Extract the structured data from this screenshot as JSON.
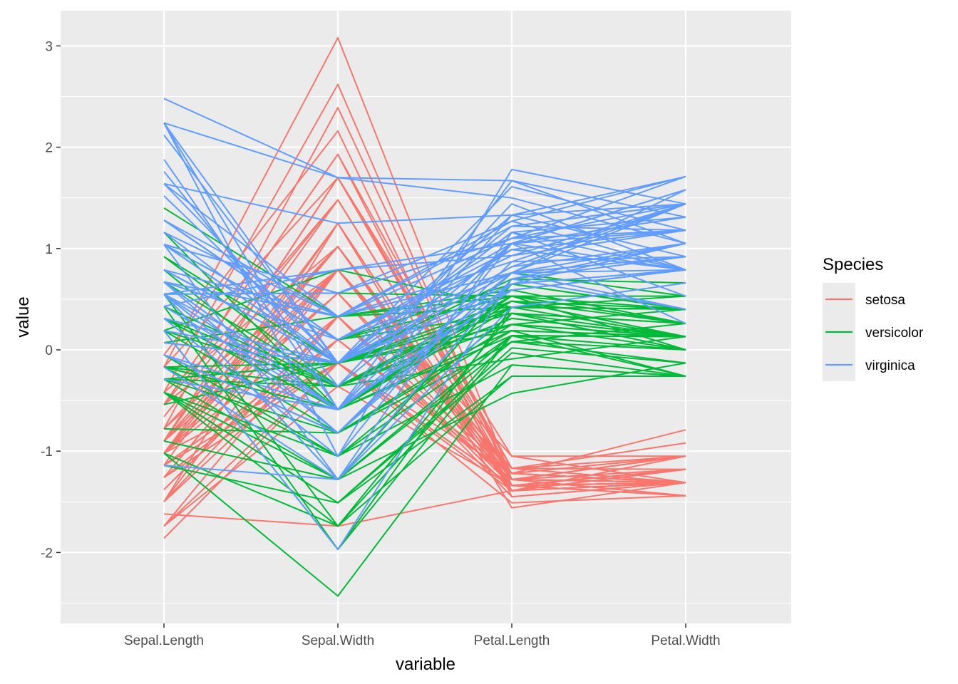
{
  "chart_data": {
    "type": "line",
    "xlabel": "variable",
    "ylabel": "value",
    "categories": [
      "Sepal.Length",
      "Sepal.Width",
      "Petal.Length",
      "Petal.Width"
    ],
    "y_ticks": [
      "-2",
      "-1",
      "0",
      "1",
      "2",
      "3"
    ],
    "ylim": [
      -2.6,
      3.3
    ],
    "grid": true,
    "legend": {
      "title": "Species",
      "position": "right"
    },
    "panel_color": "#ebebeb",
    "series": [
      {
        "name": "setosa",
        "color": "#f8766d",
        "lines": [
          [
            -0.9,
            1.02,
            -1.34,
            -1.31
          ],
          [
            -1.14,
            -0.13,
            -1.34,
            -1.31
          ],
          [
            -1.38,
            0.33,
            -1.39,
            -1.31
          ],
          [
            -1.5,
            0.1,
            -1.28,
            -1.31
          ],
          [
            -1.02,
            1.25,
            -1.34,
            -1.31
          ],
          [
            -0.54,
            1.93,
            -1.17,
            -1.05
          ],
          [
            -1.5,
            0.79,
            -1.34,
            -1.18
          ],
          [
            -1.02,
            0.79,
            -1.28,
            -1.31
          ],
          [
            -1.74,
            -0.36,
            -1.34,
            -1.31
          ],
          [
            -1.14,
            0.1,
            -1.28,
            -1.44
          ],
          [
            -0.54,
            1.48,
            -1.28,
            -1.31
          ],
          [
            -1.26,
            0.79,
            -1.22,
            -1.31
          ],
          [
            -1.26,
            -0.13,
            -1.34,
            -1.44
          ],
          [
            -1.86,
            -0.13,
            -1.51,
            -1.44
          ],
          [
            -0.05,
            2.16,
            -1.45,
            -1.31
          ],
          [
            -0.17,
            3.08,
            -1.28,
            -1.05
          ],
          [
            -0.54,
            1.93,
            -1.39,
            -1.05
          ],
          [
            -0.9,
            1.02,
            -1.34,
            -1.18
          ],
          [
            -0.17,
            1.7,
            -1.17,
            -1.18
          ],
          [
            -0.9,
            1.7,
            -1.28,
            -1.18
          ],
          [
            -0.54,
            0.79,
            -1.17,
            -1.31
          ],
          [
            -0.9,
            1.48,
            -1.28,
            -1.05
          ],
          [
            -1.5,
            1.25,
            -1.56,
            -1.31
          ],
          [
            -0.9,
            0.56,
            -1.17,
            -0.92
          ],
          [
            -1.26,
            0.79,
            -1.05,
            -1.31
          ],
          [
            -1.02,
            -0.13,
            -1.22,
            -1.31
          ],
          [
            -1.02,
            0.79,
            -1.22,
            -1.05
          ],
          [
            -0.78,
            1.02,
            -1.28,
            -1.31
          ],
          [
            -0.78,
            0.79,
            -1.34,
            -1.31
          ],
          [
            -1.38,
            0.33,
            -1.22,
            -1.31
          ],
          [
            -1.26,
            0.1,
            -1.22,
            -1.31
          ],
          [
            -0.54,
            0.79,
            -1.28,
            -1.05
          ],
          [
            -0.78,
            2.39,
            -1.28,
            -1.44
          ],
          [
            -0.42,
            2.62,
            -1.34,
            -1.31
          ],
          [
            -1.14,
            0.1,
            -1.28,
            -1.31
          ],
          [
            -1.02,
            0.33,
            -1.45,
            -1.31
          ],
          [
            -0.42,
            1.02,
            -1.39,
            -1.31
          ],
          [
            -1.14,
            1.25,
            -1.34,
            -1.44
          ],
          [
            -1.74,
            -0.13,
            -1.39,
            -1.31
          ],
          [
            -0.9,
            0.79,
            -1.28,
            -1.31
          ],
          [
            -1.02,
            1.02,
            -1.39,
            -1.18
          ],
          [
            -1.62,
            -1.74,
            -1.39,
            -1.18
          ],
          [
            -1.74,
            0.33,
            -1.39,
            -1.31
          ],
          [
            -1.02,
            1.02,
            -1.22,
            -0.79
          ],
          [
            -0.9,
            1.7,
            -1.05,
            -1.05
          ],
          [
            -1.26,
            -0.13,
            -1.34,
            -1.18
          ],
          [
            -0.9,
            1.7,
            -1.22,
            -1.31
          ],
          [
            -1.5,
            0.33,
            -1.34,
            -1.31
          ],
          [
            -0.66,
            1.48,
            -1.28,
            -1.31
          ],
          [
            -1.02,
            0.56,
            -1.34,
            -1.31
          ]
        ]
      },
      {
        "name": "versicolor",
        "color": "#00ba38",
        "lines": [
          [
            1.4,
            0.33,
            0.53,
            0.26
          ],
          [
            0.67,
            0.33,
            0.42,
            0.4
          ],
          [
            1.28,
            0.1,
            0.65,
            0.4
          ],
          [
            -0.42,
            -1.74,
            0.14,
            0.13
          ],
          [
            0.79,
            -0.59,
            0.48,
            0.4
          ],
          [
            -0.17,
            -0.59,
            0.42,
            0.13
          ],
          [
            0.55,
            0.56,
            0.53,
            0.53
          ],
          [
            -1.14,
            -1.51,
            -0.26,
            -0.26
          ],
          [
            0.92,
            -0.36,
            0.48,
            0.13
          ],
          [
            -0.78,
            -0.82,
            0.08,
            0.26
          ],
          [
            -1.02,
            -2.43,
            -0.15,
            -0.26
          ],
          [
            0.07,
            -0.13,
            0.25,
            0.4
          ],
          [
            0.19,
            -1.97,
            0.14,
            -0.26
          ],
          [
            0.31,
            -0.36,
            0.53,
            0.26
          ],
          [
            -0.29,
            -0.36,
            -0.09,
            0.13
          ],
          [
            1.04,
            0.1,
            0.36,
            0.26
          ],
          [
            -0.29,
            -0.13,
            0.42,
            0.4
          ],
          [
            -0.05,
            -0.82,
            0.19,
            -0.26
          ],
          [
            0.43,
            -1.97,
            0.42,
            0.4
          ],
          [
            -0.29,
            -1.28,
            0.08,
            -0.13
          ],
          [
            0.07,
            0.33,
            0.59,
            0.79
          ],
          [
            0.31,
            -0.59,
            0.14,
            0.13
          ],
          [
            0.55,
            -1.28,
            0.65,
            0.4
          ],
          [
            0.31,
            -0.59,
            0.53,
            0.0
          ],
          [
            0.67,
            -0.36,
            0.31,
            0.13
          ],
          [
            0.92,
            -0.13,
            0.36,
            0.26
          ],
          [
            1.16,
            -0.59,
            0.59,
            0.26
          ],
          [
            1.04,
            -0.13,
            0.7,
            0.66
          ],
          [
            0.19,
            -0.36,
            0.42,
            0.4
          ],
          [
            -0.17,
            -1.05,
            -0.15,
            -0.26
          ],
          [
            -0.42,
            -1.51,
            0.02,
            -0.13
          ],
          [
            -0.42,
            -1.51,
            -0.03,
            -0.26
          ],
          [
            -0.05,
            -0.82,
            0.08,
            0.0
          ],
          [
            0.19,
            -0.82,
            0.76,
            0.53
          ],
          [
            -0.54,
            -0.13,
            0.42,
            0.4
          ],
          [
            0.19,
            0.79,
            0.42,
            0.53
          ],
          [
            1.04,
            0.1,
            0.53,
            0.4
          ],
          [
            0.55,
            -1.74,
            0.36,
            0.13
          ],
          [
            -0.29,
            -0.13,
            0.19,
            0.13
          ],
          [
            -0.42,
            -1.28,
            0.14,
            0.13
          ],
          [
            -0.42,
            -1.05,
            0.36,
            0.0
          ],
          [
            0.31,
            -0.13,
            0.48,
            0.26
          ],
          [
            -0.05,
            -1.05,
            0.14,
            0.0
          ],
          [
            -1.02,
            -1.74,
            -0.26,
            -0.26
          ],
          [
            -0.29,
            -0.82,
            0.25,
            0.13
          ],
          [
            -0.17,
            -0.13,
            0.25,
            0.0
          ],
          [
            -0.17,
            -0.36,
            0.25,
            0.13
          ],
          [
            0.43,
            -0.36,
            0.31,
            0.13
          ],
          [
            -0.9,
            -1.28,
            -0.43,
            -0.13
          ],
          [
            -0.17,
            -0.59,
            0.19,
            0.13
          ]
        ]
      },
      {
        "name": "virginica",
        "color": "#619cff",
        "lines": [
          [
            0.55,
            0.56,
            1.27,
            1.71
          ],
          [
            -0.05,
            -0.82,
            0.76,
            0.92
          ],
          [
            1.52,
            -0.13,
            1.22,
            1.18
          ],
          [
            0.55,
            -0.36,
            1.05,
            0.79
          ],
          [
            0.79,
            -0.13,
            1.16,
            1.31
          ],
          [
            2.12,
            -0.13,
            1.61,
            1.18
          ],
          [
            -1.14,
            -1.28,
            0.42,
            0.66
          ],
          [
            1.76,
            -0.36,
            1.44,
            0.79
          ],
          [
            1.04,
            -1.28,
            1.16,
            0.79
          ],
          [
            1.64,
            1.25,
            1.33,
            1.71
          ],
          [
            0.79,
            0.33,
            0.76,
            1.05
          ],
          [
            0.67,
            -0.82,
            0.87,
            0.92
          ],
          [
            1.16,
            -0.13,
            0.99,
            1.18
          ],
          [
            -0.17,
            -1.28,
            0.7,
            1.05
          ],
          [
            -0.05,
            -0.59,
            0.76,
            1.58
          ],
          [
            0.67,
            0.33,
            0.87,
            1.44
          ],
          [
            0.79,
            -0.13,
            0.99,
            0.79
          ],
          [
            2.24,
            1.7,
            1.67,
            1.31
          ],
          [
            2.24,
            -1.05,
            1.78,
            1.44
          ],
          [
            0.19,
            -1.97,
            0.7,
            0.4
          ],
          [
            1.28,
            0.33,
            1.1,
            1.44
          ],
          [
            -0.29,
            -0.59,
            0.65,
            1.05
          ],
          [
            2.24,
            -0.59,
            1.67,
            1.05
          ],
          [
            0.55,
            -0.82,
            0.65,
            0.79
          ],
          [
            1.04,
            0.56,
            1.1,
            1.18
          ],
          [
            1.64,
            0.33,
            1.27,
            0.79
          ],
          [
            0.43,
            -0.59,
            0.59,
            0.79
          ],
          [
            0.31,
            -0.13,
            0.65,
            0.79
          ],
          [
            0.67,
            -0.59,
            1.05,
            1.18
          ],
          [
            1.64,
            -0.13,
            1.16,
            0.53
          ],
          [
            1.88,
            -0.59,
            1.33,
            0.92
          ],
          [
            2.48,
            1.7,
            1.5,
            1.05
          ],
          [
            0.67,
            -0.59,
            1.05,
            1.31
          ],
          [
            0.55,
            -0.59,
            0.76,
            0.4
          ],
          [
            0.31,
            -1.05,
            1.05,
            0.26
          ],
          [
            2.24,
            -0.13,
            1.33,
            1.44
          ],
          [
            0.55,
            0.79,
            1.05,
            1.58
          ],
          [
            0.67,
            0.1,
            0.99,
            0.79
          ],
          [
            0.19,
            -0.13,
            0.59,
            0.79
          ],
          [
            1.28,
            0.1,
            0.93,
            1.18
          ],
          [
            1.04,
            0.1,
            1.05,
            1.58
          ],
          [
            1.28,
            0.1,
            0.76,
            1.44
          ],
          [
            -0.05,
            -0.82,
            0.76,
            0.92
          ],
          [
            1.16,
            0.33,
            1.22,
            1.44
          ],
          [
            1.04,
            0.56,
            1.1,
            1.71
          ],
          [
            1.04,
            -0.13,
            0.82,
            1.44
          ],
          [
            0.55,
            -1.28,
            0.7,
            0.92
          ],
          [
            0.79,
            -0.13,
            0.82,
            1.05
          ],
          [
            0.43,
            0.79,
            0.93,
            1.44
          ],
          [
            0.07,
            -0.13,
            0.76,
            0.79
          ]
        ]
      }
    ]
  }
}
